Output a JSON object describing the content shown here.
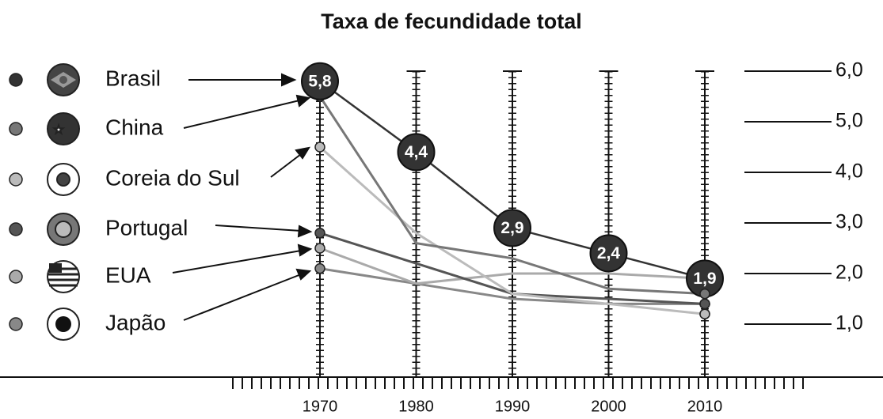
{
  "chart_data": {
    "type": "line",
    "title": "Taxa de fecundidade total",
    "categories": [
      "1970",
      "1980",
      "1990",
      "2000",
      "2010"
    ],
    "series": [
      {
        "name": "Brasil",
        "color": "#333333",
        "values": [
          5.8,
          4.4,
          2.9,
          2.4,
          1.9
        ],
        "value_labels": [
          "5,8",
          "4,4",
          "2,9",
          "2,4",
          "1,9"
        ]
      },
      {
        "name": "China",
        "color": "#777777",
        "values": [
          5.5,
          2.6,
          2.3,
          1.7,
          1.6
        ]
      },
      {
        "name": "Coreia do Sul",
        "color": "#bbbbbb",
        "values": [
          4.5,
          2.8,
          1.6,
          1.4,
          1.2
        ]
      },
      {
        "name": "Portugal",
        "color": "#555555",
        "values": [
          2.8,
          2.2,
          1.6,
          1.5,
          1.4
        ]
      },
      {
        "name": "EUA",
        "color": "#aaaaaa",
        "values": [
          2.5,
          1.8,
          2.0,
          2.0,
          1.9
        ]
      },
      {
        "name": "Japão",
        "color": "#888888",
        "values": [
          2.1,
          1.8,
          1.5,
          1.4,
          1.4
        ]
      }
    ],
    "ylim": [
      0,
      6
    ],
    "yticks": [
      {
        "value": 1,
        "label": "1,0"
      },
      {
        "value": 2,
        "label": "2,0"
      },
      {
        "value": 3,
        "label": "3,0"
      },
      {
        "value": 4,
        "label": "4,0"
      },
      {
        "value": 5,
        "label": "5,0"
      },
      {
        "value": 6,
        "label": "6,0"
      }
    ],
    "grid": true
  }
}
